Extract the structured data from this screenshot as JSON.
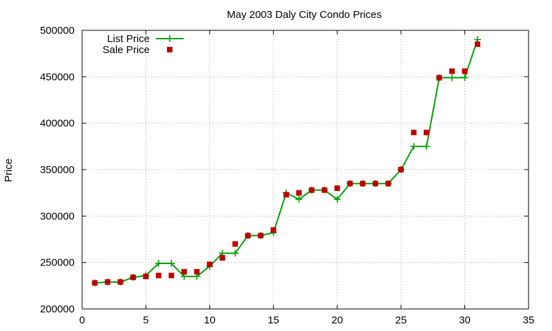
{
  "chart_data": {
    "type": "line",
    "title": "May 2003 Daly City Condo Prices",
    "xlabel": "",
    "ylabel": "Price",
    "xlim": [
      0,
      35
    ],
    "ylim": [
      200000,
      500000
    ],
    "xticks": [
      0,
      5,
      10,
      15,
      20,
      25,
      30,
      35
    ],
    "yticks": [
      200000,
      250000,
      300000,
      350000,
      400000,
      450000,
      500000
    ],
    "grid": true,
    "legend_position": "top-left",
    "series": [
      {
        "name": "List Price",
        "style": "line-with-plus-markers",
        "color": "#00a000",
        "points": [
          [
            1,
            228000
          ],
          [
            2,
            229000
          ],
          [
            3,
            229000
          ],
          [
            4,
            234000
          ],
          [
            5,
            236000
          ],
          [
            6,
            249000
          ],
          [
            7,
            249000
          ],
          [
            8,
            235000
          ],
          [
            9,
            235000
          ],
          [
            10,
            246000
          ],
          [
            11,
            260000
          ],
          [
            12,
            260000
          ],
          [
            13,
            279000
          ],
          [
            14,
            279000
          ],
          [
            15,
            282000
          ],
          [
            16,
            325000
          ],
          [
            17,
            318000
          ],
          [
            18,
            328000
          ],
          [
            19,
            328000
          ],
          [
            20,
            318000
          ],
          [
            21,
            335000
          ],
          [
            22,
            335000
          ],
          [
            23,
            335000
          ],
          [
            24,
            335000
          ],
          [
            25,
            350000
          ],
          [
            26,
            375000
          ],
          [
            27,
            375000
          ],
          [
            28,
            449000
          ],
          [
            29,
            449000
          ],
          [
            30,
            449000
          ],
          [
            31,
            490000
          ]
        ]
      },
      {
        "name": "Sale Price",
        "style": "square-markers",
        "color": "#c00000",
        "points": [
          [
            1,
            228000
          ],
          [
            2,
            229000
          ],
          [
            3,
            229000
          ],
          [
            4,
            234000
          ],
          [
            5,
            235000
          ],
          [
            6,
            236000
          ],
          [
            7,
            236000
          ],
          [
            8,
            240000
          ],
          [
            9,
            240000
          ],
          [
            10,
            248000
          ],
          [
            11,
            255000
          ],
          [
            12,
            270000
          ],
          [
            13,
            279000
          ],
          [
            14,
            279000
          ],
          [
            15,
            285000
          ],
          [
            16,
            323000
          ],
          [
            17,
            325000
          ],
          [
            18,
            328000
          ],
          [
            19,
            328000
          ],
          [
            20,
            330000
          ],
          [
            21,
            335000
          ],
          [
            22,
            335000
          ],
          [
            23,
            335000
          ],
          [
            24,
            335000
          ],
          [
            25,
            350000
          ],
          [
            26,
            390000
          ],
          [
            27,
            390000
          ],
          [
            28,
            449000
          ],
          [
            29,
            456000
          ],
          [
            30,
            456000
          ],
          [
            31,
            485000
          ]
        ]
      }
    ]
  }
}
